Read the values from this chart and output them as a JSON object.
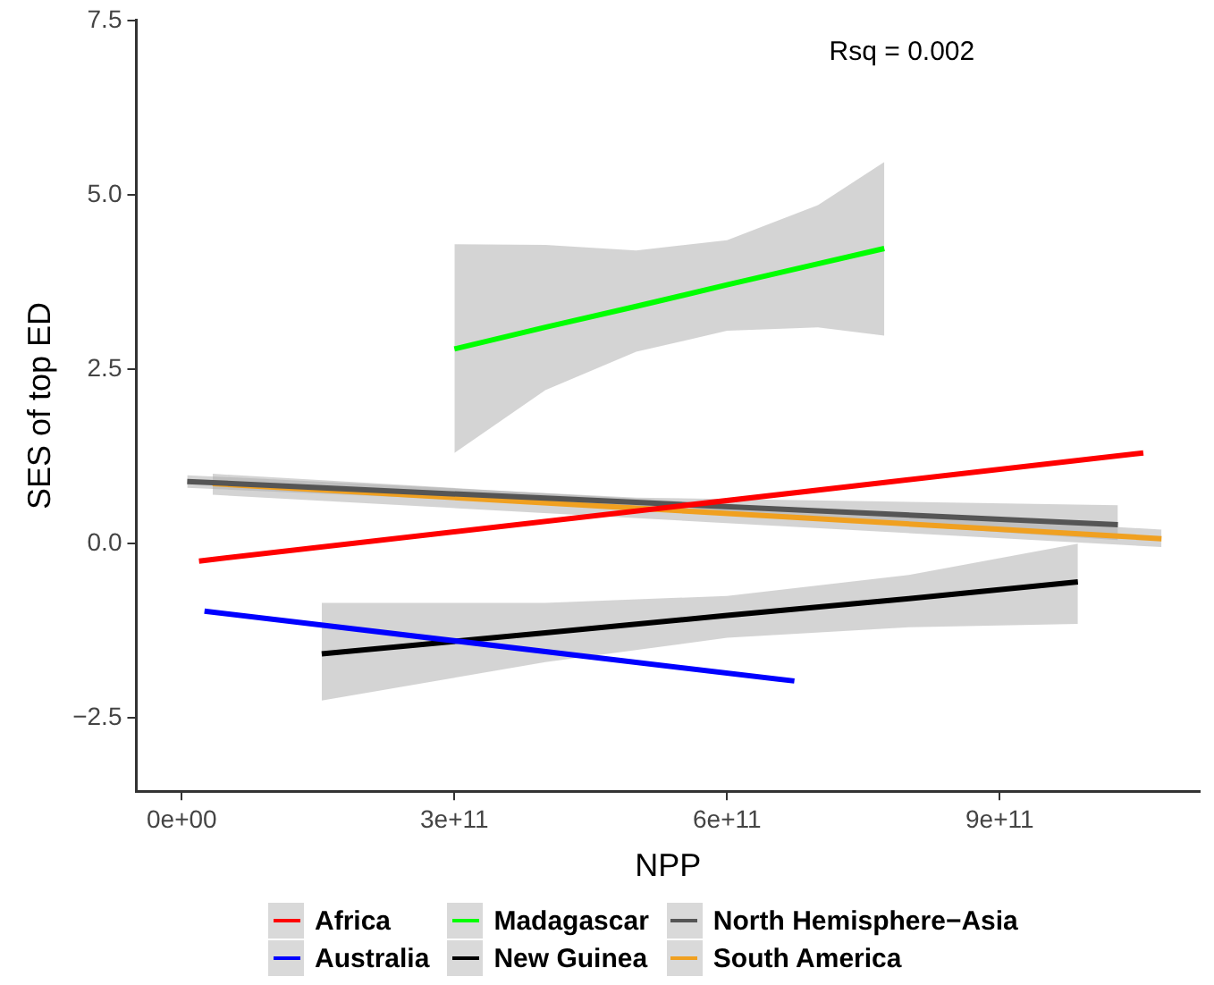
{
  "chart_data": {
    "type": "line",
    "xlabel": "NPP",
    "ylabel": "SES of top ED",
    "annotations": [
      "Rsq = 0.002"
    ],
    "xlim": [
      -50000000000.0,
      1120000000000.0
    ],
    "ylim": [
      -3.55,
      7.5
    ],
    "xticks": [
      {
        "value": 0,
        "label": "0e+00"
      },
      {
        "value": 300000000000.0,
        "label": "3e+11"
      },
      {
        "value": 600000000000.0,
        "label": "6e+11"
      },
      {
        "value": 900000000000.0,
        "label": "9e+11"
      }
    ],
    "yticks": [
      {
        "value": -2.5,
        "label": "−2.5"
      },
      {
        "value": 0,
        "label": "0.0"
      },
      {
        "value": 2.5,
        "label": "2.5"
      },
      {
        "value": 5,
        "label": "5.0"
      },
      {
        "value": 7.5,
        "label": "7.5"
      }
    ],
    "grid": false,
    "legend": "bottom",
    "marker": "none",
    "line_style": "solid",
    "series": [
      {
        "name": "Africa",
        "color": "#ff0000",
        "x": [
          19000000000.0,
          1058000000000.0
        ],
        "values": [
          -0.25,
          1.3
        ]
      },
      {
        "name": "Australia",
        "color": "#0000ff",
        "x": [
          25000000000.0,
          674000000000.0
        ],
        "values": [
          -0.97,
          -1.97
        ]
      },
      {
        "name": "Madagascar",
        "color": "#00ff00",
        "x": [
          300000000000.0,
          400000000000.0,
          500000000000.0,
          600000000000.0,
          700000000000.0,
          773000000000.0
        ],
        "values": [
          2.79,
          3.1,
          3.4,
          3.71,
          4.01,
          4.23
        ],
        "lower": [
          1.3,
          2.2,
          2.75,
          3.05,
          3.1,
          2.98
        ],
        "upper": [
          4.29,
          4.28,
          4.2,
          4.35,
          4.85,
          5.47
        ]
      },
      {
        "name": "New Guinea",
        "color": "#000000",
        "x": [
          154000000000.0,
          400000000000.0,
          600000000000.0,
          800000000000.0,
          986000000000.0
        ],
        "values": [
          -1.58,
          -1.28,
          -1.03,
          -0.79,
          -0.55
        ],
        "lower": [
          -2.25,
          -1.7,
          -1.35,
          -1.2,
          -1.15
        ],
        "upper": [
          -0.85,
          -0.85,
          -0.75,
          -0.45,
          0.0
        ]
      },
      {
        "name": "North Hemisphere−Asia",
        "color": "#555555",
        "x": [
          6000000000.0,
          500000000000.0,
          1030000000000.0
        ],
        "values": [
          0.89,
          0.59,
          0.27
        ],
        "lower": [
          0.8,
          0.52,
          0.05
        ],
        "upper": [
          0.98,
          0.66,
          0.55
        ]
      },
      {
        "name": "South America",
        "color": "#f0a020",
        "x": [
          34000000000.0,
          1078000000000.0
        ],
        "values": [
          0.86,
          0.07
        ],
        "lower": [
          0.7,
          -0.05
        ],
        "upper": [
          1.0,
          0.2
        ]
      }
    ]
  }
}
